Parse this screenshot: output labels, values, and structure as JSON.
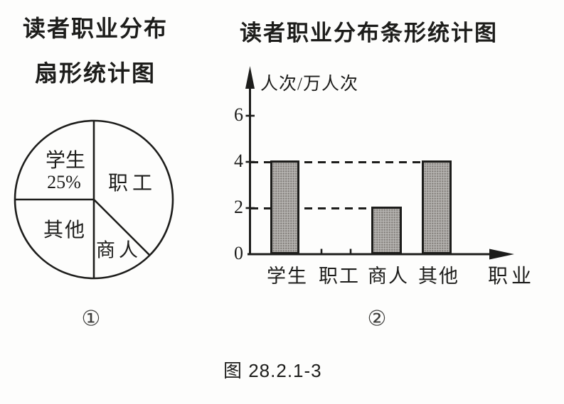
{
  "colors": {
    "ink": "#1d1d1b",
    "bar_fill": "#b5b3b0",
    "background": "#fdfdfc"
  },
  "pie_section": {
    "title_line1": "读者职业分布",
    "title_line2": "扇形统计图",
    "figure_number": "①",
    "labels": {
      "student": "学生",
      "student_percent": "25%",
      "worker": "职工",
      "other": "其他",
      "merchant": "商人"
    }
  },
  "bar_section": {
    "title": "读者职业分布条形统计图",
    "y_axis_label": "人次/万人次",
    "x_axis_label": "职业",
    "figure_number": "②"
  },
  "caption": "图 28.2.1-3",
  "chart_data": [
    {
      "type": "pie",
      "title": "读者职业分布扇形统计图",
      "slices": [
        {
          "label": "学生",
          "percent": 25,
          "percent_label": "25%"
        },
        {
          "label": "职工",
          "percent": 37.5,
          "percent_label": ""
        },
        {
          "label": "商人",
          "percent": 12.5,
          "percent_label": ""
        },
        {
          "label": "其他",
          "percent": 25,
          "percent_label": ""
        }
      ]
    },
    {
      "type": "bar",
      "title": "读者职业分布条形统计图",
      "categories": [
        "学生",
        "职工",
        "商人",
        "其他"
      ],
      "values": [
        4,
        null,
        2,
        4
      ],
      "yticks": [
        0,
        2,
        4,
        6
      ],
      "ylim": [
        0,
        7
      ],
      "ylabel": "人次/万人次",
      "xlabel": "职业",
      "dashed_guides": [
        4,
        2
      ]
    }
  ]
}
